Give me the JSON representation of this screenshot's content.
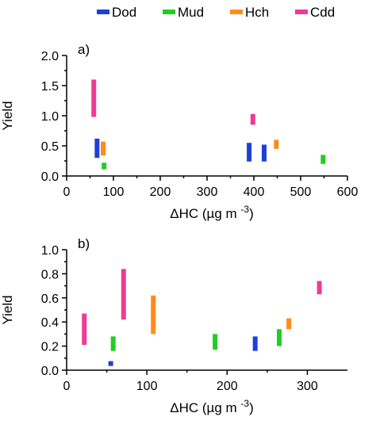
{
  "legend": [
    {
      "name": "Dod",
      "color": "#1f3fd8"
    },
    {
      "name": "Mud",
      "color": "#22cc22"
    },
    {
      "name": "Hch",
      "color": "#ff8c1a"
    },
    {
      "name": "Cdd",
      "color": "#ee3b96"
    }
  ],
  "chart_data": [
    {
      "type": "range-bar",
      "panel_label": "a)",
      "xlabel": "ΔHC (µg m",
      "xlabel_sup": "-3",
      "xlabel_close": ")",
      "ylabel": "Yield",
      "xlim": [
        0,
        600
      ],
      "ylim": [
        0,
        2.0
      ],
      "x_ticks": [
        0,
        100,
        200,
        300,
        400,
        500,
        600
      ],
      "x_tick_labels": [
        "0",
        "100",
        "200",
        "300",
        "400",
        "500",
        "600"
      ],
      "y_ticks": [
        0,
        0.5,
        1.0,
        1.5,
        2.0
      ],
      "y_tick_labels": [
        "0.0",
        "0.5",
        "1.0",
        "1.5",
        "2.0"
      ],
      "series": [
        {
          "name": "Dod",
          "points": [
            {
              "x": 65,
              "low": 0.3,
              "high": 0.62
            },
            {
              "x": 390,
              "low": 0.24,
              "high": 0.55
            },
            {
              "x": 422,
              "low": 0.24,
              "high": 0.52
            }
          ]
        },
        {
          "name": "Mud",
          "points": [
            {
              "x": 80,
              "low": 0.11,
              "high": 0.22
            },
            {
              "x": 548,
              "low": 0.2,
              "high": 0.35
            }
          ]
        },
        {
          "name": "Hch",
          "points": [
            {
              "x": 78,
              "low": 0.34,
              "high": 0.57
            },
            {
              "x": 448,
              "low": 0.45,
              "high": 0.6
            }
          ]
        },
        {
          "name": "Cdd",
          "points": [
            {
              "x": 58,
              "low": 0.98,
              "high": 1.6
            },
            {
              "x": 398,
              "low": 0.85,
              "high": 1.03
            }
          ]
        }
      ]
    },
    {
      "type": "range-bar",
      "panel_label": "b)",
      "xlabel": "ΔHC (µg m",
      "xlabel_sup": "-3",
      "xlabel_close": ")",
      "ylabel": "Yield",
      "xlim": [
        0,
        350
      ],
      "ylim": [
        0,
        1.0
      ],
      "x_ticks": [
        0,
        100,
        200,
        300
      ],
      "x_tick_labels": [
        "0",
        "100",
        "200",
        "300"
      ],
      "y_ticks": [
        0,
        0.2,
        0.4,
        0.6,
        0.8,
        1.0
      ],
      "y_tick_labels": [
        "0.0",
        "0.2",
        "0.4",
        "0.6",
        "0.8",
        "1.0"
      ],
      "series": [
        {
          "name": "Dod",
          "points": [
            {
              "x": 55,
              "low": 0.035,
              "high": 0.075
            },
            {
              "x": 235,
              "low": 0.16,
              "high": 0.28
            }
          ]
        },
        {
          "name": "Mud",
          "points": [
            {
              "x": 58,
              "low": 0.16,
              "high": 0.28
            },
            {
              "x": 185,
              "low": 0.17,
              "high": 0.3
            },
            {
              "x": 265,
              "low": 0.2,
              "high": 0.34
            }
          ]
        },
        {
          "name": "Hch",
          "points": [
            {
              "x": 108,
              "low": 0.3,
              "high": 0.62
            },
            {
              "x": 277,
              "low": 0.34,
              "high": 0.43
            }
          ]
        },
        {
          "name": "Cdd",
          "points": [
            {
              "x": 22,
              "low": 0.21,
              "high": 0.47
            },
            {
              "x": 71,
              "low": 0.42,
              "high": 0.84
            },
            {
              "x": 315,
              "low": 0.63,
              "high": 0.74
            }
          ]
        }
      ]
    }
  ]
}
